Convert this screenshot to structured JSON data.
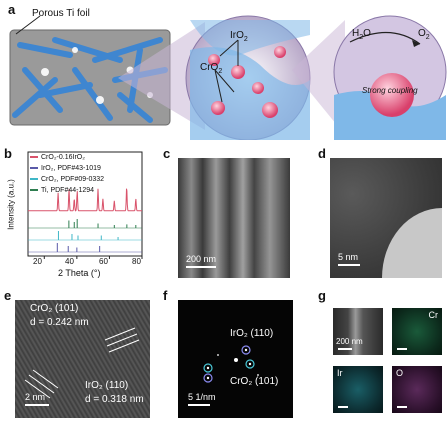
{
  "panels": {
    "a": {
      "label": "a",
      "foil_label": "Porous Ti foil",
      "iro2": "IrO",
      "iro2_sub": "2",
      "cro2": "CrO",
      "cro2_sub": "2",
      "h2o": "H",
      "h2o_sub": "2",
      "h2o_tail": "O",
      "o2": "O",
      "o2_sub": "2",
      "coupling": "Strong coupling"
    },
    "b": {
      "label": "b",
      "legend": [
        {
          "text": "CrO₂-0.16IrO₂",
          "color": "#d9536b"
        },
        {
          "text": "IrO₂, PDF#43-1019",
          "color": "#5a5aa8"
        },
        {
          "text": "CrO₂, PDF#09-0332",
          "color": "#3fb7c7"
        },
        {
          "text": "Ti, PDF#44-1294",
          "color": "#2e7d4f"
        }
      ],
      "ylabel": "Intensity (a.u.)",
      "xlabel": "2 Theta (°)",
      "xticks": [
        "20",
        "40",
        "60",
        "80"
      ]
    },
    "c": {
      "label": "c",
      "scale": "200 nm"
    },
    "d": {
      "label": "d",
      "scale": "5 nm"
    },
    "e": {
      "label": "e",
      "cro2_plane": "CrO₂ (101)",
      "cro2_d": "d = 0.242 nm",
      "iro2_plane": "IrO₂ (110)",
      "iro2_d": "d = 0.318 nm",
      "scale": "2 nm"
    },
    "f": {
      "label": "f",
      "iro2": "IrO₂ (110)",
      "cro2": "CrO₂ (101)",
      "scale": "5 1/nm"
    },
    "g": {
      "label": "g",
      "scale": "200 nm",
      "maps": [
        "Cr",
        "Ir",
        "O"
      ]
    }
  },
  "colors": {
    "cr_map": "#1f8a5c",
    "ir_map": "#1f9aa8",
    "o_map": "#9a3a9a",
    "foil": "#8a8a8a",
    "rods": "#4a8fd6",
    "particle": "#e0507a"
  },
  "chart_data": {
    "type": "line",
    "xlabel": "2 Theta (°)",
    "ylabel": "Intensity (a.u.)",
    "xlim": [
      10,
      80
    ],
    "xticks": [
      20,
      40,
      60,
      80
    ],
    "series": [
      {
        "name": "CrO₂-0.16IrO₂",
        "peaks_x": [
          28.5,
          35.2,
          38.4,
          40.2,
          53.0,
          56.0,
          63.0,
          70.6,
          76.2
        ],
        "peaks_y": [
          0.45,
          0.55,
          0.3,
          0.5,
          0.55,
          0.3,
          0.25,
          0.6,
          0.3
        ]
      },
      {
        "name": "IrO₂, PDF#43-1019",
        "peaks_x": [
          28.0,
          34.7,
          40.0,
          54.0
        ],
        "peaks_y": [
          0.3,
          0.2,
          0.15,
          0.2
        ]
      },
      {
        "name": "CrO₂, PDF#09-0332",
        "peaks_x": [
          28.7,
          37.0,
          40.7,
          55.0,
          65.3
        ],
        "peaks_y": [
          0.3,
          0.2,
          0.15,
          0.15,
          0.1
        ]
      },
      {
        "name": "Ti, PDF#44-1294",
        "peaks_x": [
          35.1,
          38.4,
          40.2,
          53.0,
          63.0,
          70.7,
          76.2
        ],
        "peaks_y": [
          0.25,
          0.2,
          0.3,
          0.15,
          0.1,
          0.12,
          0.1
        ]
      }
    ]
  }
}
